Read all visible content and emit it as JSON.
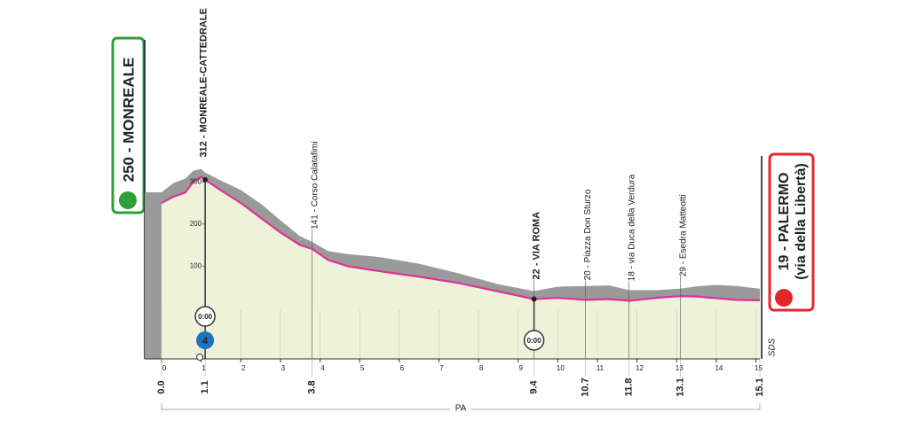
{
  "chart_data": {
    "type": "line",
    "x": [
      0,
      0.3,
      0.6,
      0.8,
      1.0,
      1.1,
      1.5,
      2,
      2.5,
      3,
      3.5,
      3.8,
      4.2,
      4.7,
      5.5,
      6.5,
      7.5,
      8.5,
      9.4,
      10,
      10.7,
      11.3,
      11.8,
      12.5,
      13.1,
      13.5,
      14,
      14.5,
      15.1
    ],
    "values": [
      250,
      265,
      275,
      300,
      312,
      305,
      280,
      250,
      215,
      180,
      150,
      141,
      115,
      100,
      88,
      75,
      60,
      40,
      22,
      25,
      20,
      22,
      18,
      25,
      29,
      28,
      24,
      20,
      19
    ],
    "color": "#e0309e",
    "fill_color": "#eef2d8",
    "shoulder_color": "#9a9a9a",
    "xlim": [
      0,
      15.1
    ],
    "ylim": [
      -120,
      330
    ],
    "xticks": [
      0,
      1,
      2,
      3,
      4,
      5,
      6,
      7,
      8,
      9,
      10,
      11,
      12,
      13,
      14,
      15
    ],
    "yticks": [
      100,
      200,
      300
    ],
    "distance_labels": [
      {
        "value": 0,
        "label": "0.0"
      },
      1.1,
      3.8,
      9.4,
      10.7,
      11.8,
      13.1,
      15.1
    ],
    "annotations": [
      {
        "x": 1.0,
        "text": "312 - MONREALE-CATTEDRALE"
      },
      {
        "x": 3.8,
        "text": "141 - Corso Calatafimi"
      },
      {
        "x": 9.4,
        "text": "22 - VIA ROMA"
      },
      {
        "x": 10.7,
        "text": "20 - Piazza Don Sturzo"
      },
      {
        "x": 11.8,
        "text": "18 - via Duca della Verdura"
      },
      {
        "x": 13.1,
        "text": "29 - Esedra Matteotti"
      }
    ],
    "timing": [
      {
        "x": 1.1,
        "text": "0:00"
      },
      {
        "x": 9.4,
        "text": "0:00"
      }
    ],
    "climb_badge": "4",
    "start": "250 - MONREALE",
    "finish": [
      "19 - PALERMO",
      "(via della Libertà)"
    ],
    "sector": "PA",
    "finish_mark": "SDS"
  }
}
